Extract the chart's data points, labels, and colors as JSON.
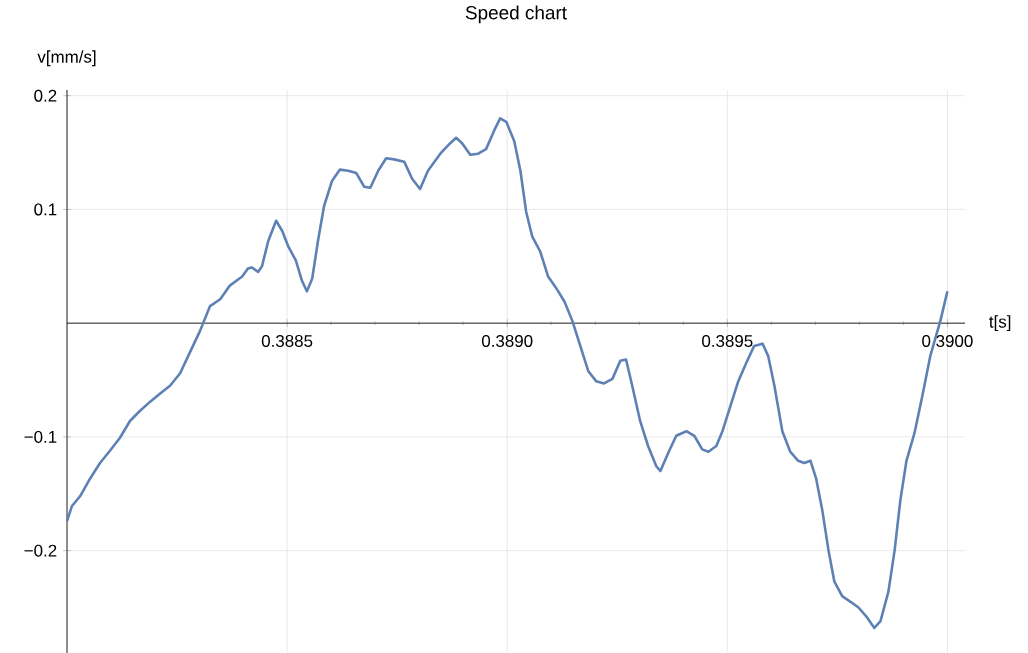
{
  "chart_data": {
    "type": "line",
    "title": "Speed chart",
    "xlabel": "t[s]",
    "ylabel": "v[mm/s]",
    "xlim": [
      0.388,
      0.39004
    ],
    "ylim": [
      -0.29,
      0.205
    ],
    "xticks": [
      0.3885,
      {
        "value": 0.389,
        "label": "0.3890"
      },
      {
        "value": 0.3895,
        "label": "0.3895"
      },
      {
        "value": 0.39,
        "label": "0.3900"
      }
    ],
    "yticks": [
      {
        "value": -0.2,
        "label": "−0.2"
      },
      {
        "value": -0.1,
        "label": "−0.1"
      },
      0.1,
      0.2
    ],
    "grid": true,
    "color": "#5e81b5",
    "x": [
      0.388,
      0.388011,
      0.38803,
      0.388052,
      0.388075,
      0.388098,
      0.38812,
      0.388143,
      0.388166,
      0.388189,
      0.388211,
      0.388234,
      0.388257,
      0.38828,
      0.388302,
      0.388325,
      0.388348,
      0.38837,
      0.388384,
      0.388398,
      0.388411,
      0.38842,
      0.388434,
      0.388443,
      0.388457,
      0.388475,
      0.388489,
      0.388502,
      0.38852,
      0.388534,
      0.388545,
      0.388557,
      0.38857,
      0.388584,
      0.388602,
      0.38862,
      0.388639,
      0.388657,
      0.388675,
      0.388689,
      0.388707,
      0.388725,
      0.388743,
      0.388766,
      0.388784,
      0.388802,
      0.38882,
      0.388848,
      0.38887,
      0.388884,
      0.388898,
      0.388916,
      0.388934,
      0.388952,
      0.38897,
      0.388984,
      0.388998,
      0.389016,
      0.38903,
      0.389043,
      0.389057,
      0.389075,
      0.389093,
      0.389111,
      0.38913,
      0.389148,
      0.389166,
      0.389184,
      0.389202,
      0.38922,
      0.389239,
      0.389257,
      0.38927,
      0.389284,
      0.389302,
      0.38932,
      0.389339,
      0.389348,
      0.389366,
      0.389384,
      0.389407,
      0.389425,
      0.389443,
      0.389457,
      0.389475,
      0.389489,
      0.389507,
      0.389525,
      0.389543,
      0.389561,
      0.38958,
      0.389593,
      0.389607,
      0.389625,
      0.389643,
      0.389661,
      0.389675,
      0.389689,
      0.389702,
      0.389716,
      0.38973,
      0.389743,
      0.389761,
      0.38978,
      0.389798,
      0.389816,
      0.389834,
      0.389848,
      0.389866,
      0.38988,
      0.389893,
      0.389907,
      0.389925,
      0.389943,
      0.389961,
      0.389984,
      0.39
    ],
    "values": [
      -0.174,
      -0.161,
      -0.152,
      -0.137,
      -0.123,
      -0.112,
      -0.101,
      -0.086,
      -0.077,
      -0.069,
      -0.062,
      -0.055,
      -0.044,
      -0.025,
      -0.007,
      0.015,
      0.021,
      0.033,
      0.037,
      0.041,
      0.048,
      0.049,
      0.045,
      0.05,
      0.072,
      0.09,
      0.081,
      0.068,
      0.055,
      0.037,
      0.028,
      0.039,
      0.072,
      0.103,
      0.125,
      0.135,
      0.134,
      0.132,
      0.12,
      0.119,
      0.134,
      0.145,
      0.144,
      0.142,
      0.127,
      0.118,
      0.134,
      0.149,
      0.158,
      0.163,
      0.158,
      0.148,
      0.149,
      0.153,
      0.169,
      0.18,
      0.177,
      0.16,
      0.134,
      0.098,
      0.076,
      0.063,
      0.041,
      0.031,
      0.019,
      0.002,
      -0.02,
      -0.042,
      -0.051,
      -0.053,
      -0.049,
      -0.033,
      -0.032,
      -0.055,
      -0.086,
      -0.108,
      -0.126,
      -0.13,
      -0.114,
      -0.099,
      -0.095,
      -0.099,
      -0.111,
      -0.113,
      -0.108,
      -0.095,
      -0.073,
      -0.051,
      -0.035,
      -0.02,
      -0.018,
      -0.029,
      -0.055,
      -0.095,
      -0.113,
      -0.121,
      -0.123,
      -0.121,
      -0.137,
      -0.165,
      -0.2,
      -0.227,
      -0.24,
      -0.245,
      -0.25,
      -0.258,
      -0.268,
      -0.262,
      -0.236,
      -0.2,
      -0.156,
      -0.121,
      -0.097,
      -0.064,
      -0.029,
      0.002,
      0.028
    ]
  }
}
